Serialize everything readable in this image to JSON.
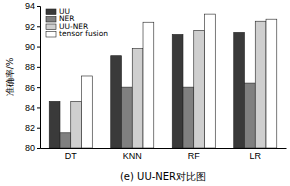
{
  "chart_data": {
    "type": "bar",
    "title": "(e) UU-NER对比图",
    "y_label": "准确率/%",
    "categories": [
      "DT",
      "KNN",
      "RF",
      "LR"
    ],
    "series": [
      {
        "name": "UU",
        "color": "#3a3a3a",
        "values": [
          84.6,
          89.1,
          91.2,
          91.4
        ]
      },
      {
        "name": "NER",
        "color": "#808080",
        "values": [
          81.5,
          86.0,
          86.0,
          86.4
        ]
      },
      {
        "name": "UU-NER",
        "color": "#cfcfcf",
        "values": [
          84.6,
          89.8,
          91.6,
          92.5
        ]
      },
      {
        "name": "tensor fusion",
        "color": "#ffffff",
        "values": [
          87.1,
          92.4,
          93.2,
          92.7
        ]
      }
    ],
    "ylim": [
      80,
      94
    ],
    "yticks": [
      80,
      82,
      84,
      86,
      88,
      90,
      92,
      94
    ],
    "legend": "upper left"
  }
}
